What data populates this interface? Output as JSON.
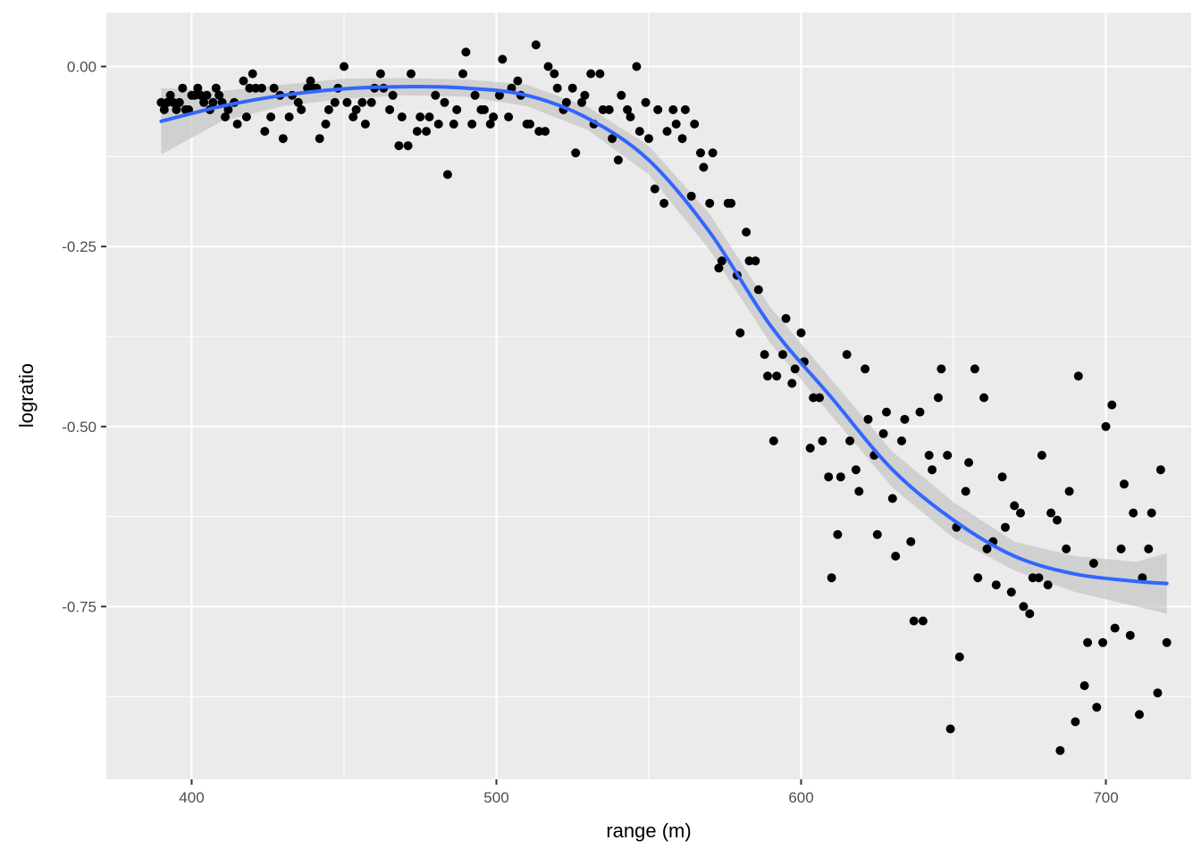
{
  "chart_data": {
    "type": "scatter",
    "xlabel": "range (m)",
    "ylabel": "logratio",
    "xlim": [
      372,
      728
    ],
    "ylim": [
      -0.99,
      0.075
    ],
    "x_ticks": [
      400,
      500,
      600,
      700
    ],
    "x_tick_labels": [
      "400",
      "500",
      "600",
      "700"
    ],
    "y_ticks": [
      0.0,
      -0.25,
      -0.5,
      -0.75
    ],
    "y_tick_labels": [
      "0.00",
      "-0.25",
      "-0.50",
      "-0.75"
    ],
    "grid": true,
    "colors": {
      "panel": "#ebebeb",
      "grid": "#ffffff",
      "point": "#000000",
      "smooth": "#3366ff",
      "ribbon": "#bebebe"
    },
    "points": [
      [
        390,
        -0.05
      ],
      [
        391,
        -0.06
      ],
      [
        392,
        -0.05
      ],
      [
        393,
        -0.04
      ],
      [
        394,
        -0.05
      ],
      [
        395,
        -0.06
      ],
      [
        396,
        -0.05
      ],
      [
        397,
        -0.03
      ],
      [
        398,
        -0.06
      ],
      [
        399,
        -0.06
      ],
      [
        400,
        -0.04
      ],
      [
        401,
        -0.04
      ],
      [
        402,
        -0.03
      ],
      [
        403,
        -0.04
      ],
      [
        404,
        -0.05
      ],
      [
        405,
        -0.04
      ],
      [
        406,
        -0.06
      ],
      [
        407,
        -0.05
      ],
      [
        408,
        -0.03
      ],
      [
        409,
        -0.04
      ],
      [
        410,
        -0.05
      ],
      [
        411,
        -0.07
      ],
      [
        412,
        -0.06
      ],
      [
        414,
        -0.05
      ],
      [
        415,
        -0.08
      ],
      [
        417,
        -0.02
      ],
      [
        418,
        -0.07
      ],
      [
        419,
        -0.03
      ],
      [
        420,
        -0.01
      ],
      [
        421,
        -0.03
      ],
      [
        423,
        -0.03
      ],
      [
        424,
        -0.09
      ],
      [
        426,
        -0.07
      ],
      [
        427,
        -0.03
      ],
      [
        429,
        -0.04
      ],
      [
        430,
        -0.1
      ],
      [
        432,
        -0.07
      ],
      [
        433,
        -0.04
      ],
      [
        435,
        -0.05
      ],
      [
        436,
        -0.06
      ],
      [
        438,
        -0.03
      ],
      [
        439,
        -0.02
      ],
      [
        440,
        -0.03
      ],
      [
        441,
        -0.03
      ],
      [
        442,
        -0.1
      ],
      [
        444,
        -0.08
      ],
      [
        445,
        -0.06
      ],
      [
        447,
        -0.05
      ],
      [
        448,
        -0.03
      ],
      [
        450,
        0.0
      ],
      [
        451,
        -0.05
      ],
      [
        453,
        -0.07
      ],
      [
        454,
        -0.06
      ],
      [
        456,
        -0.05
      ],
      [
        457,
        -0.08
      ],
      [
        459,
        -0.05
      ],
      [
        460,
        -0.03
      ],
      [
        462,
        -0.01
      ],
      [
        463,
        -0.03
      ],
      [
        465,
        -0.06
      ],
      [
        466,
        -0.04
      ],
      [
        468,
        -0.11
      ],
      [
        469,
        -0.07
      ],
      [
        471,
        -0.11
      ],
      [
        472,
        -0.01
      ],
      [
        474,
        -0.09
      ],
      [
        475,
        -0.07
      ],
      [
        477,
        -0.09
      ],
      [
        478,
        -0.07
      ],
      [
        480,
        -0.04
      ],
      [
        481,
        -0.08
      ],
      [
        483,
        -0.05
      ],
      [
        484,
        -0.15
      ],
      [
        486,
        -0.08
      ],
      [
        487,
        -0.06
      ],
      [
        489,
        -0.01
      ],
      [
        490,
        0.02
      ],
      [
        492,
        -0.08
      ],
      [
        493,
        -0.04
      ],
      [
        495,
        -0.06
      ],
      [
        496,
        -0.06
      ],
      [
        498,
        -0.08
      ],
      [
        499,
        -0.07
      ],
      [
        501,
        -0.04
      ],
      [
        502,
        0.01
      ],
      [
        504,
        -0.07
      ],
      [
        505,
        -0.03
      ],
      [
        507,
        -0.02
      ],
      [
        508,
        -0.04
      ],
      [
        510,
        -0.08
      ],
      [
        511,
        -0.08
      ],
      [
        513,
        0.03
      ],
      [
        514,
        -0.09
      ],
      [
        516,
        -0.09
      ],
      [
        517,
        0.0
      ],
      [
        519,
        -0.01
      ],
      [
        520,
        -0.03
      ],
      [
        522,
        -0.06
      ],
      [
        523,
        -0.05
      ],
      [
        525,
        -0.03
      ],
      [
        526,
        -0.12
      ],
      [
        528,
        -0.05
      ],
      [
        529,
        -0.04
      ],
      [
        531,
        -0.01
      ],
      [
        532,
        -0.08
      ],
      [
        534,
        -0.01
      ],
      [
        535,
        -0.06
      ],
      [
        537,
        -0.06
      ],
      [
        538,
        -0.1
      ],
      [
        540,
        -0.13
      ],
      [
        541,
        -0.04
      ],
      [
        543,
        -0.06
      ],
      [
        544,
        -0.07
      ],
      [
        546,
        0.0
      ],
      [
        547,
        -0.09
      ],
      [
        549,
        -0.05
      ],
      [
        550,
        -0.1
      ],
      [
        552,
        -0.17
      ],
      [
        553,
        -0.06
      ],
      [
        555,
        -0.19
      ],
      [
        556,
        -0.09
      ],
      [
        558,
        -0.06
      ],
      [
        559,
        -0.08
      ],
      [
        561,
        -0.1
      ],
      [
        562,
        -0.06
      ],
      [
        564,
        -0.18
      ],
      [
        565,
        -0.08
      ],
      [
        567,
        -0.12
      ],
      [
        568,
        -0.14
      ],
      [
        570,
        -0.19
      ],
      [
        571,
        -0.12
      ],
      [
        573,
        -0.28
      ],
      [
        574,
        -0.27
      ],
      [
        576,
        -0.19
      ],
      [
        577,
        -0.19
      ],
      [
        579,
        -0.29
      ],
      [
        580,
        -0.37
      ],
      [
        582,
        -0.23
      ],
      [
        583,
        -0.27
      ],
      [
        585,
        -0.27
      ],
      [
        586,
        -0.31
      ],
      [
        588,
        -0.4
      ],
      [
        589,
        -0.43
      ],
      [
        591,
        -0.52
      ],
      [
        592,
        -0.43
      ],
      [
        594,
        -0.4
      ],
      [
        595,
        -0.35
      ],
      [
        597,
        -0.44
      ],
      [
        598,
        -0.42
      ],
      [
        600,
        -0.37
      ],
      [
        601,
        -0.41
      ],
      [
        603,
        -0.53
      ],
      [
        604,
        -0.46
      ],
      [
        606,
        -0.46
      ],
      [
        607,
        -0.52
      ],
      [
        609,
        -0.57
      ],
      [
        610,
        -0.71
      ],
      [
        612,
        -0.65
      ],
      [
        613,
        -0.57
      ],
      [
        615,
        -0.4
      ],
      [
        616,
        -0.52
      ],
      [
        618,
        -0.56
      ],
      [
        619,
        -0.59
      ],
      [
        621,
        -0.42
      ],
      [
        622,
        -0.49
      ],
      [
        624,
        -0.54
      ],
      [
        625,
        -0.65
      ],
      [
        627,
        -0.51
      ],
      [
        628,
        -0.48
      ],
      [
        630,
        -0.6
      ],
      [
        631,
        -0.68
      ],
      [
        633,
        -0.52
      ],
      [
        634,
        -0.49
      ],
      [
        636,
        -0.66
      ],
      [
        637,
        -0.77
      ],
      [
        639,
        -0.48
      ],
      [
        640,
        -0.77
      ],
      [
        642,
        -0.54
      ],
      [
        643,
        -0.56
      ],
      [
        645,
        -0.46
      ],
      [
        646,
        -0.42
      ],
      [
        648,
        -0.54
      ],
      [
        649,
        -0.92
      ],
      [
        651,
        -0.64
      ],
      [
        652,
        -0.82
      ],
      [
        654,
        -0.59
      ],
      [
        655,
        -0.55
      ],
      [
        657,
        -0.42
      ],
      [
        658,
        -0.71
      ],
      [
        660,
        -0.46
      ],
      [
        661,
        -0.67
      ],
      [
        663,
        -0.66
      ],
      [
        664,
        -0.72
      ],
      [
        666,
        -0.57
      ],
      [
        667,
        -0.64
      ],
      [
        669,
        -0.73
      ],
      [
        670,
        -0.61
      ],
      [
        672,
        -0.62
      ],
      [
        673,
        -0.75
      ],
      [
        675,
        -0.76
      ],
      [
        676,
        -0.71
      ],
      [
        678,
        -0.71
      ],
      [
        679,
        -0.54
      ],
      [
        681,
        -0.72
      ],
      [
        682,
        -0.62
      ],
      [
        684,
        -0.63
      ],
      [
        685,
        -0.95
      ],
      [
        687,
        -0.67
      ],
      [
        688,
        -0.59
      ],
      [
        690,
        -0.91
      ],
      [
        691,
        -0.43
      ],
      [
        693,
        -0.86
      ],
      [
        694,
        -0.8
      ],
      [
        696,
        -0.69
      ],
      [
        697,
        -0.89
      ],
      [
        699,
        -0.8
      ],
      [
        700,
        -0.5
      ],
      [
        702,
        -0.47
      ],
      [
        703,
        -0.78
      ],
      [
        705,
        -0.67
      ],
      [
        706,
        -0.58
      ],
      [
        708,
        -0.79
      ],
      [
        709,
        -0.62
      ],
      [
        711,
        -0.9
      ],
      [
        712,
        -0.71
      ],
      [
        714,
        -0.67
      ],
      [
        715,
        -0.62
      ],
      [
        717,
        -0.87
      ],
      [
        718,
        -0.56
      ],
      [
        720,
        -0.8
      ]
    ],
    "smooth": {
      "x": [
        390,
        410,
        430,
        450,
        470,
        490,
        510,
        530,
        550,
        570,
        590,
        610,
        630,
        650,
        670,
        690,
        710,
        720
      ],
      "y": [
        -0.076,
        -0.055,
        -0.04,
        -0.031,
        -0.028,
        -0.03,
        -0.04,
        -0.072,
        -0.13,
        -0.23,
        -0.36,
        -0.46,
        -0.56,
        -0.63,
        -0.68,
        -0.705,
        -0.715,
        -0.718
      ],
      "lower": [
        -0.122,
        -0.076,
        -0.055,
        -0.045,
        -0.04,
        -0.042,
        -0.055,
        -0.088,
        -0.15,
        -0.255,
        -0.385,
        -0.485,
        -0.585,
        -0.655,
        -0.7,
        -0.73,
        -0.75,
        -0.76
      ],
      "upper": [
        -0.03,
        -0.034,
        -0.025,
        -0.017,
        -0.016,
        -0.018,
        -0.025,
        -0.056,
        -0.11,
        -0.205,
        -0.335,
        -0.435,
        -0.535,
        -0.605,
        -0.66,
        -0.68,
        -0.688,
        -0.676
      ]
    }
  }
}
